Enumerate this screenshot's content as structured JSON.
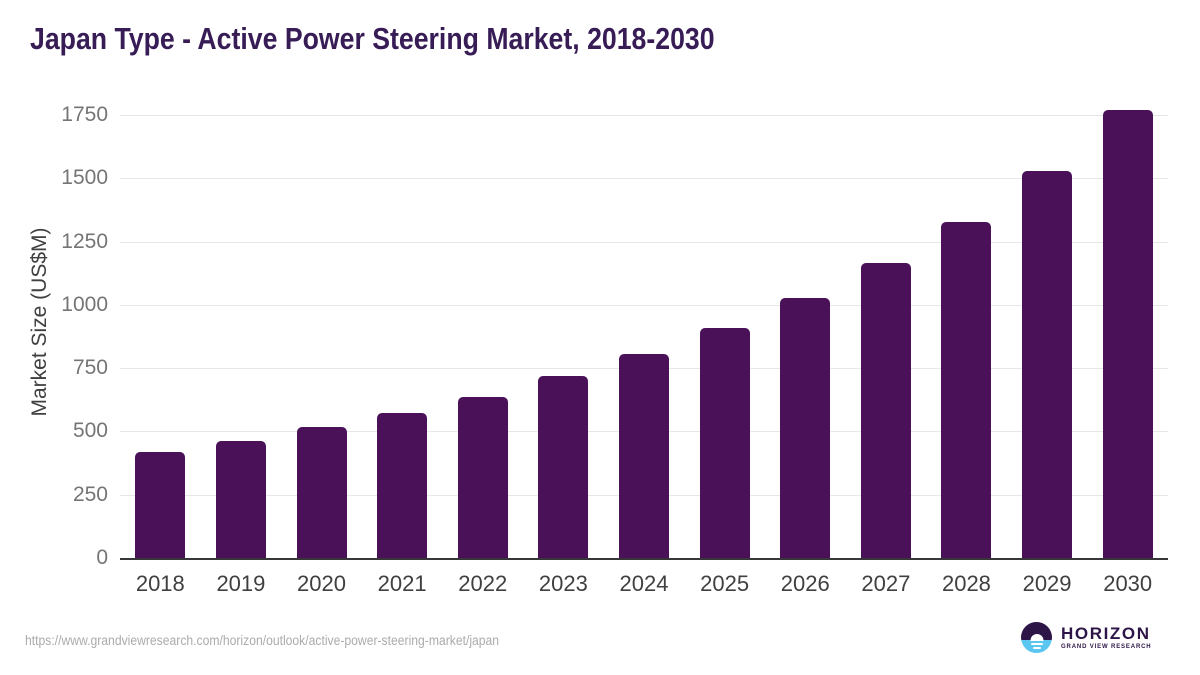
{
  "chart_data": {
    "type": "bar",
    "title": "Japan Type - Active Power Steering Market, 2018-2030",
    "categories": [
      "2018",
      "2019",
      "2020",
      "2021",
      "2022",
      "2023",
      "2024",
      "2025",
      "2026",
      "2027",
      "2028",
      "2029",
      "2030"
    ],
    "values": [
      417,
      462,
      516,
      573,
      638,
      720,
      806,
      908,
      1026,
      1164,
      1328,
      1530,
      1768
    ],
    "xlabel": "",
    "ylabel": "Market Size (US$M)",
    "ylim": [
      0,
      1750
    ],
    "yticks": [
      0,
      250,
      500,
      750,
      1000,
      1250,
      1500,
      1750
    ],
    "grid": "horizontal",
    "legend": "none",
    "bar_color": "#4a1158"
  },
  "footer": {
    "source_url": "https://www.grandviewresearch.com/horizon/outlook/active-power-steering-market/japan",
    "logo_title": "HORIZON",
    "logo_subtitle": "GRAND VIEW RESEARCH"
  },
  "colors": {
    "title": "#371c56",
    "bar": "#4a1158",
    "axis": "#37373a",
    "grid": "#e7e7e7",
    "tick": "#757575",
    "xlabel": "#404040",
    "url": "#ababab",
    "logo_dark": "#2d1547",
    "logo_blue": "#5bc6f0"
  }
}
